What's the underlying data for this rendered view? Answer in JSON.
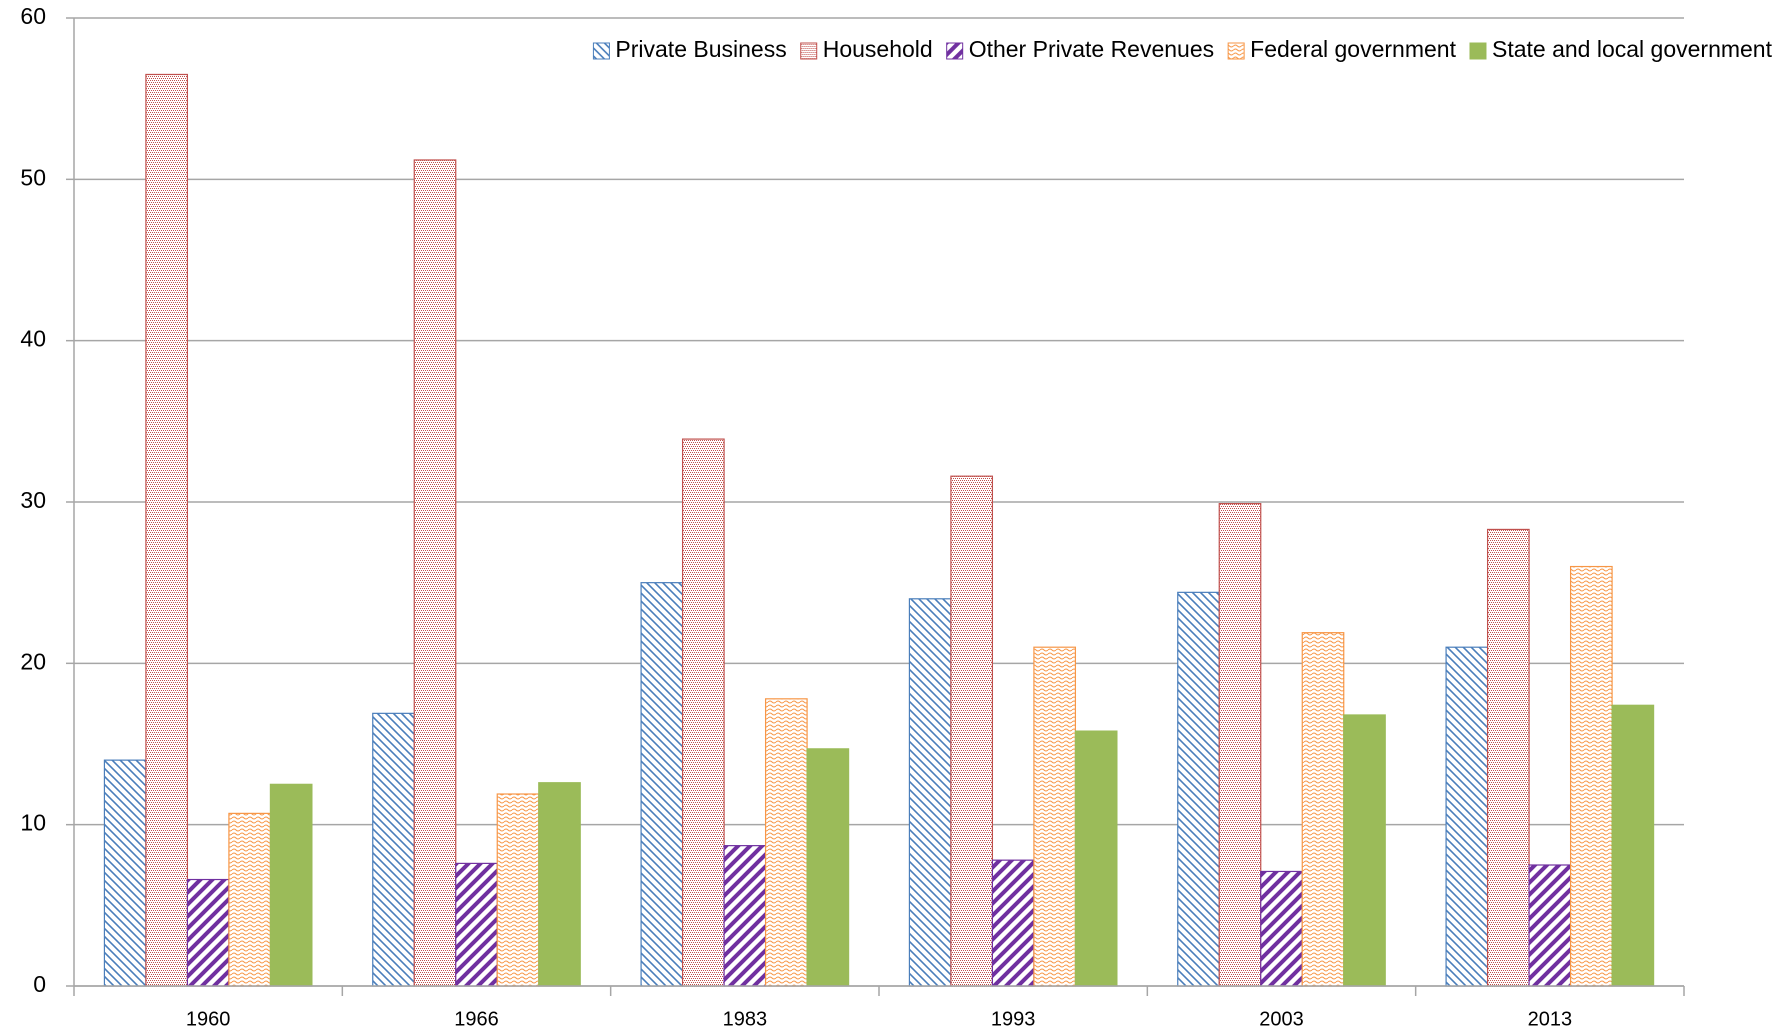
{
  "chart_data": {
    "type": "bar",
    "categories": [
      "1960",
      "1966",
      "1983",
      "1993",
      "2003",
      "2013"
    ],
    "series": [
      {
        "name": "Private Business",
        "color": "#4a7ebb",
        "values": [
          14,
          16.9,
          25,
          24,
          24.4,
          21
        ]
      },
      {
        "name": "Household",
        "color": "#c0504d",
        "values": [
          56.5,
          51.2,
          33.9,
          31.6,
          29.9,
          28.3
        ]
      },
      {
        "name": "Other Private Revenues",
        "color": "#7030a0",
        "values": [
          6.6,
          7.6,
          8.7,
          7.8,
          7.1,
          7.5
        ]
      },
      {
        "name": "Federal government",
        "color": "#f79646",
        "values": [
          10.7,
          11.9,
          17.8,
          21,
          21.9,
          26
        ]
      },
      {
        "name": "State and local government",
        "color": "#9bbb59",
        "values": [
          12.5,
          12.6,
          14.7,
          15.8,
          16.8,
          17.4
        ]
      }
    ],
    "ylim": [
      0,
      60
    ],
    "yticks": [
      0,
      10,
      20,
      30,
      40,
      50,
      60
    ],
    "grid": true,
    "legend": "top-right"
  }
}
